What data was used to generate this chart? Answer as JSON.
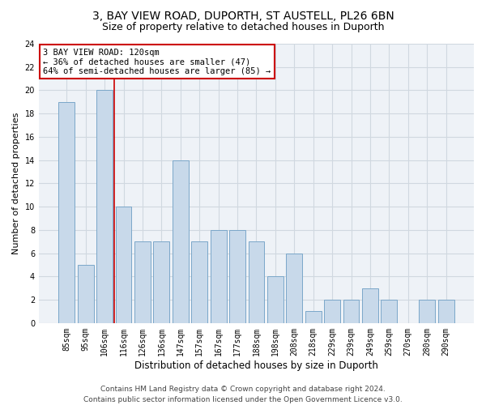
{
  "title_line1": "3, BAY VIEW ROAD, DUPORTH, ST AUSTELL, PL26 6BN",
  "title_line2": "Size of property relative to detached houses in Duporth",
  "xlabel": "Distribution of detached houses by size in Duporth",
  "ylabel": "Number of detached properties",
  "categories": [
    "85sqm",
    "95sqm",
    "106sqm",
    "116sqm",
    "126sqm",
    "136sqm",
    "147sqm",
    "157sqm",
    "167sqm",
    "177sqm",
    "188sqm",
    "198sqm",
    "208sqm",
    "218sqm",
    "229sqm",
    "239sqm",
    "249sqm",
    "259sqm",
    "270sqm",
    "280sqm",
    "290sqm"
  ],
  "values": [
    19,
    5,
    20,
    10,
    7,
    7,
    14,
    7,
    8,
    8,
    7,
    4,
    6,
    1,
    2,
    2,
    3,
    2,
    0,
    2,
    2
  ],
  "bar_color": "#c8d9ea",
  "bar_edge_color": "#7ba7c9",
  "grid_color": "#d0d8e0",
  "bg_color": "#eef2f7",
  "annotation_line1": "3 BAY VIEW ROAD: 120sqm",
  "annotation_line2": "← 36% of detached houses are smaller (47)",
  "annotation_line3": "64% of semi-detached houses are larger (85) →",
  "annotation_box_color": "#ffffff",
  "annotation_border_color": "#cc0000",
  "vline_x": 2.5,
  "vline_color": "#cc0000",
  "ylim": [
    0,
    24
  ],
  "yticks": [
    0,
    2,
    4,
    6,
    8,
    10,
    12,
    14,
    16,
    18,
    20,
    22,
    24
  ],
  "footer_line1": "Contains HM Land Registry data © Crown copyright and database right 2024.",
  "footer_line2": "Contains public sector information licensed under the Open Government Licence v3.0.",
  "title_fontsize": 10,
  "subtitle_fontsize": 9,
  "xlabel_fontsize": 8.5,
  "ylabel_fontsize": 8,
  "tick_fontsize": 7,
  "footer_fontsize": 6.5,
  "annotation_fontsize": 7.5
}
